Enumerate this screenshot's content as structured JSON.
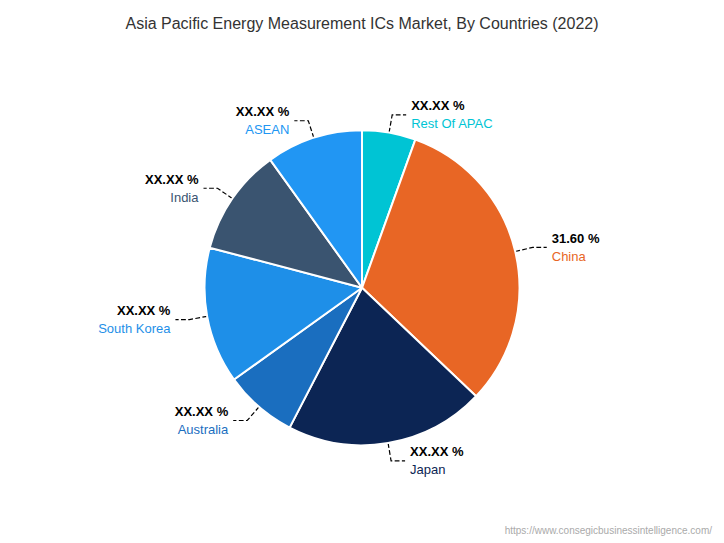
{
  "chart_data": {
    "type": "pie",
    "title": "Asia Pacific Energy Measurement ICs Market, By Countries (2022)",
    "categories": [
      "Rest Of APAC",
      "China",
      "Japan",
      "Australia",
      "South Korea",
      "India",
      "ASEAN"
    ],
    "values": [
      5.5,
      31.6,
      20.5,
      7.5,
      14.0,
      11.0,
      9.9
    ],
    "value_labels": [
      "XX.XX %",
      "31.60 %",
      "XX.XX %",
      "XX.XX %",
      "XX.XX %",
      "XX.XX %",
      "XX.XX %"
    ],
    "colors": [
      "#00C4D4",
      "#E86625",
      "#0C2554",
      "#1A6EBF",
      "#1E8FE8",
      "#3A5470",
      "#2196F3"
    ],
    "data_labels": true,
    "annotations": [
      "https://www.consegicbusinessintelligence.com/"
    ]
  }
}
